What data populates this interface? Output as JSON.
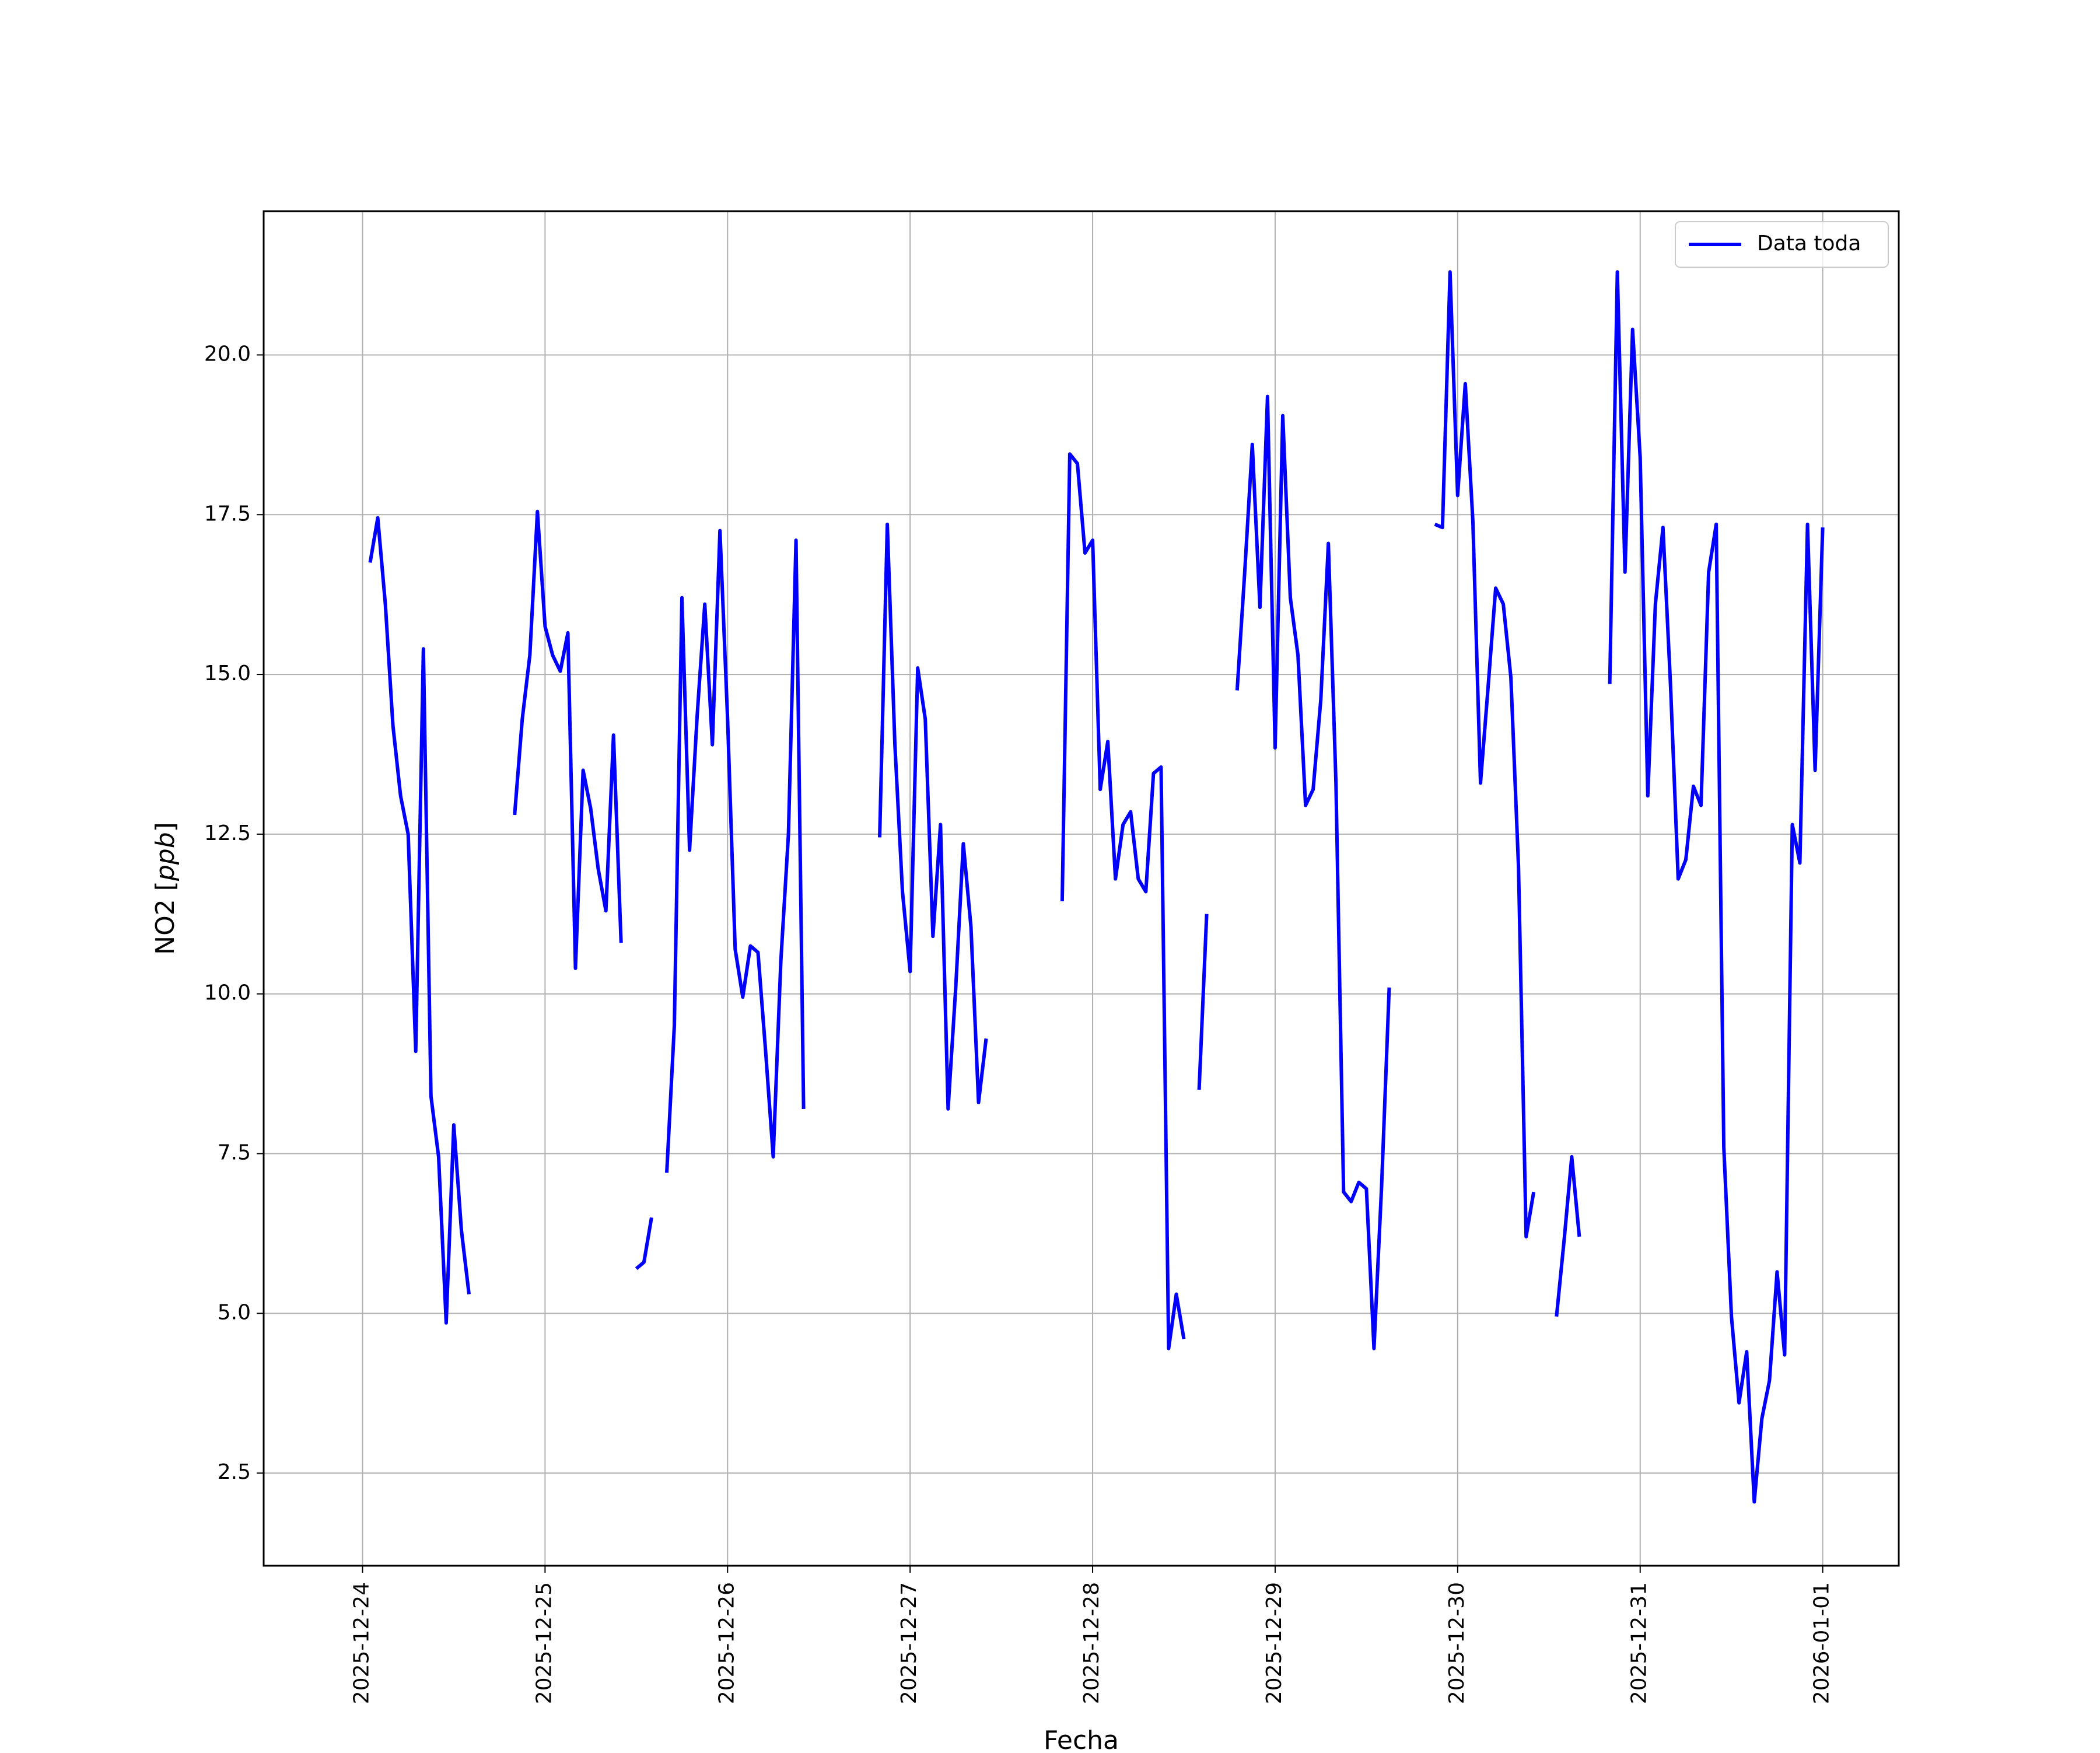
{
  "colors": {
    "line": "#0000ff",
    "grid": "#b0b0b0",
    "axes": "#000000",
    "background": "#ffffff"
  },
  "chart_data": {
    "type": "line",
    "title": "",
    "xlabel": "Fecha",
    "ylabel": "NO2 [ppb]",
    "ylabel_main": "NO2 [",
    "ylabel_unit": "ppb",
    "ylabel_close": "]",
    "x_type": "date",
    "xlim": [
      "2025-12-23 11:00",
      "2026-01-01 10:00"
    ],
    "ylim": [
      1.05,
      22.25
    ],
    "grid": true,
    "legend_position": "top-right",
    "x_ticks": [
      "2025-12-24",
      "2025-12-25",
      "2025-12-26",
      "2025-12-27",
      "2025-12-28",
      "2025-12-29",
      "2025-12-30",
      "2025-12-31",
      "2026-01-01"
    ],
    "y_ticks": [
      "2.5",
      "5.0",
      "7.5",
      "10.0",
      "12.5",
      "15.0",
      "17.5",
      "20.0"
    ],
    "series": [
      {
        "name": "Data toda",
        "segments": [
          [
            [
              "2025-12-24 01:00",
              16.75
            ],
            [
              "2025-12-24 02:00",
              17.45
            ],
            [
              "2025-12-24 03:00",
              16.1
            ],
            [
              "2025-12-24 04:00",
              14.2
            ],
            [
              "2025-12-24 05:00",
              13.1
            ],
            [
              "2025-12-24 06:00",
              12.5
            ],
            [
              "2025-12-24 07:00",
              9.1
            ],
            [
              "2025-12-24 08:00",
              15.4
            ],
            [
              "2025-12-24 09:00",
              8.4
            ],
            [
              "2025-12-24 10:00",
              7.45
            ],
            [
              "2025-12-24 11:00",
              4.85
            ],
            [
              "2025-12-24 12:00",
              7.95
            ],
            [
              "2025-12-24 13:00",
              6.3
            ],
            [
              "2025-12-24 14:00",
              5.3
            ]
          ],
          [
            [
              "2025-12-24 20:00",
              12.8
            ],
            [
              "2025-12-24 21:00",
              14.3
            ],
            [
              "2025-12-24 22:00",
              15.3
            ],
            [
              "2025-12-24 23:00",
              17.55
            ],
            [
              "2025-12-25 00:00",
              15.75
            ],
            [
              "2025-12-25 01:00",
              15.3
            ],
            [
              "2025-12-25 02:00",
              15.05
            ],
            [
              "2025-12-25 03:00",
              15.65
            ],
            [
              "2025-12-25 04:00",
              10.4
            ],
            [
              "2025-12-25 05:00",
              13.5
            ],
            [
              "2025-12-25 06:00",
              12.9
            ],
            [
              "2025-12-25 07:00",
              11.95
            ],
            [
              "2025-12-25 08:00",
              11.3
            ],
            [
              "2025-12-25 09:00",
              14.05
            ],
            [
              "2025-12-25 10:00",
              10.8
            ]
          ],
          [
            [
              "2025-12-25 12:00",
              5.7
            ],
            [
              "2025-12-25 13:00",
              5.8
            ],
            [
              "2025-12-25 14:00",
              6.5
            ]
          ],
          [
            [
              "2025-12-25 16:00",
              7.2
            ],
            [
              "2025-12-25 17:00",
              9.5
            ],
            [
              "2025-12-25 18:00",
              16.2
            ],
            [
              "2025-12-25 19:00",
              12.25
            ],
            [
              "2025-12-25 20:00",
              14.35
            ],
            [
              "2025-12-25 21:00",
              16.1
            ],
            [
              "2025-12-25 22:00",
              13.9
            ],
            [
              "2025-12-25 23:00",
              17.25
            ],
            [
              "2025-12-26 00:00",
              14.3
            ],
            [
              "2025-12-26 01:00",
              10.7
            ],
            [
              "2025-12-26 02:00",
              9.95
            ],
            [
              "2025-12-26 03:00",
              10.75
            ],
            [
              "2025-12-26 04:00",
              10.65
            ],
            [
              "2025-12-26 05:00",
              9.1
            ],
            [
              "2025-12-26 06:00",
              7.45
            ],
            [
              "2025-12-26 07:00",
              10.5
            ],
            [
              "2025-12-26 08:00",
              12.5
            ],
            [
              "2025-12-26 09:00",
              17.1
            ],
            [
              "2025-12-26 10:00",
              8.2
            ]
          ],
          [
            [
              "2025-12-26 20:00",
              12.45
            ],
            [
              "2025-12-26 21:00",
              17.35
            ],
            [
              "2025-12-26 22:00",
              13.9
            ],
            [
              "2025-12-26 23:00",
              11.6
            ],
            [
              "2025-12-27 00:00",
              10.35
            ],
            [
              "2025-12-27 01:00",
              15.1
            ],
            [
              "2025-12-27 02:00",
              14.3
            ],
            [
              "2025-12-27 03:00",
              10.9
            ],
            [
              "2025-12-27 04:00",
              12.65
            ],
            [
              "2025-12-27 05:00",
              8.2
            ],
            [
              "2025-12-27 06:00",
              10.1
            ],
            [
              "2025-12-27 07:00",
              12.35
            ],
            [
              "2025-12-27 08:00",
              11.05
            ],
            [
              "2025-12-27 09:00",
              8.3
            ],
            [
              "2025-12-27 10:00",
              9.3
            ]
          ],
          [
            [
              "2025-12-27 20:00",
              11.45
            ],
            [
              "2025-12-27 21:00",
              18.45
            ],
            [
              "2025-12-27 22:00",
              18.3
            ],
            [
              "2025-12-27 23:00",
              16.9
            ],
            [
              "2025-12-28 00:00",
              17.1
            ],
            [
              "2025-12-28 01:00",
              13.2
            ],
            [
              "2025-12-28 02:00",
              13.95
            ],
            [
              "2025-12-28 03:00",
              11.8
            ],
            [
              "2025-12-28 04:00",
              12.65
            ],
            [
              "2025-12-28 05:00",
              12.85
            ],
            [
              "2025-12-28 06:00",
              11.8
            ],
            [
              "2025-12-28 07:00",
              11.6
            ],
            [
              "2025-12-28 08:00",
              13.45
            ],
            [
              "2025-12-28 09:00",
              13.55
            ],
            [
              "2025-12-28 10:00",
              4.45
            ],
            [
              "2025-12-28 11:00",
              5.3
            ],
            [
              "2025-12-28 12:00",
              4.6
            ]
          ],
          [
            [
              "2025-12-28 14:00",
              8.5
            ],
            [
              "2025-12-28 15:00",
              11.25
            ]
          ],
          [
            [
              "2025-12-28 19:00",
              14.75
            ],
            [
              "2025-12-28 20:00",
              16.6
            ],
            [
              "2025-12-28 21:00",
              18.6
            ],
            [
              "2025-12-28 22:00",
              16.05
            ],
            [
              "2025-12-28 23:00",
              19.35
            ],
            [
              "2025-12-29 00:00",
              13.85
            ],
            [
              "2025-12-29 01:00",
              19.05
            ],
            [
              "2025-12-29 02:00",
              16.2
            ],
            [
              "2025-12-29 03:00",
              15.3
            ],
            [
              "2025-12-29 04:00",
              12.95
            ],
            [
              "2025-12-29 05:00",
              13.2
            ],
            [
              "2025-12-29 06:00",
              14.6
            ],
            [
              "2025-12-29 07:00",
              17.05
            ],
            [
              "2025-12-29 08:00",
              13.3
            ],
            [
              "2025-12-29 09:00",
              6.9
            ],
            [
              "2025-12-29 10:00",
              6.75
            ],
            [
              "2025-12-29 11:00",
              7.05
            ],
            [
              "2025-12-29 12:00",
              6.95
            ],
            [
              "2025-12-29 13:00",
              4.45
            ],
            [
              "2025-12-29 14:00",
              7.0
            ],
            [
              "2025-12-29 15:00",
              10.1
            ]
          ],
          [
            [
              "2025-12-29 21:00",
              17.35
            ],
            [
              "2025-12-29 22:00",
              17.3
            ],
            [
              "2025-12-29 23:00",
              21.3
            ],
            [
              "2025-12-30 00:00",
              17.8
            ],
            [
              "2025-12-30 01:00",
              19.55
            ],
            [
              "2025-12-30 02:00",
              17.4
            ],
            [
              "2025-12-30 03:00",
              13.3
            ],
            [
              "2025-12-30 04:00",
              14.8
            ],
            [
              "2025-12-30 05:00",
              16.35
            ],
            [
              "2025-12-30 06:00",
              16.1
            ],
            [
              "2025-12-30 07:00",
              14.95
            ],
            [
              "2025-12-30 08:00",
              12.0
            ],
            [
              "2025-12-30 09:00",
              6.2
            ],
            [
              "2025-12-30 10:00",
              6.9
            ]
          ],
          [
            [
              "2025-12-30 13:00",
              4.95
            ],
            [
              "2025-12-30 14:00",
              6.15
            ],
            [
              "2025-12-30 15:00",
              7.45
            ],
            [
              "2025-12-30 16:00",
              6.2
            ]
          ],
          [
            [
              "2025-12-30 20:00",
              14.85
            ],
            [
              "2025-12-30 21:00",
              21.3
            ],
            [
              "2025-12-30 22:00",
              16.6
            ],
            [
              "2025-12-30 23:00",
              20.4
            ],
            [
              "2025-12-31 00:00",
              18.4
            ],
            [
              "2025-12-31 01:00",
              13.1
            ],
            [
              "2025-12-31 02:00",
              16.1
            ],
            [
              "2025-12-31 03:00",
              17.3
            ],
            [
              "2025-12-31 04:00",
              14.8
            ],
            [
              "2025-12-31 05:00",
              11.8
            ],
            [
              "2025-12-31 06:00",
              12.1
            ],
            [
              "2025-12-31 07:00",
              13.25
            ],
            [
              "2025-12-31 08:00",
              12.95
            ],
            [
              "2025-12-31 09:00",
              16.6
            ],
            [
              "2025-12-31 10:00",
              17.35
            ],
            [
              "2025-12-31 11:00",
              7.6
            ],
            [
              "2025-12-31 12:00",
              4.95
            ],
            [
              "2025-12-31 13:00",
              3.6
            ],
            [
              "2025-12-31 14:00",
              4.4
            ],
            [
              "2025-12-31 15:00",
              2.05
            ],
            [
              "2025-12-31 16:00",
              3.35
            ],
            [
              "2025-12-31 17:00",
              3.95
            ],
            [
              "2025-12-31 18:00",
              5.65
            ],
            [
              "2025-12-31 19:00",
              4.35
            ],
            [
              "2025-12-31 20:00",
              12.65
            ],
            [
              "2025-12-31 21:00",
              12.05
            ],
            [
              "2025-12-31 22:00",
              17.35
            ],
            [
              "2025-12-31 23:00",
              13.5
            ],
            [
              "2026-01-01 00:00",
              17.3
            ]
          ]
        ]
      }
    ]
  }
}
